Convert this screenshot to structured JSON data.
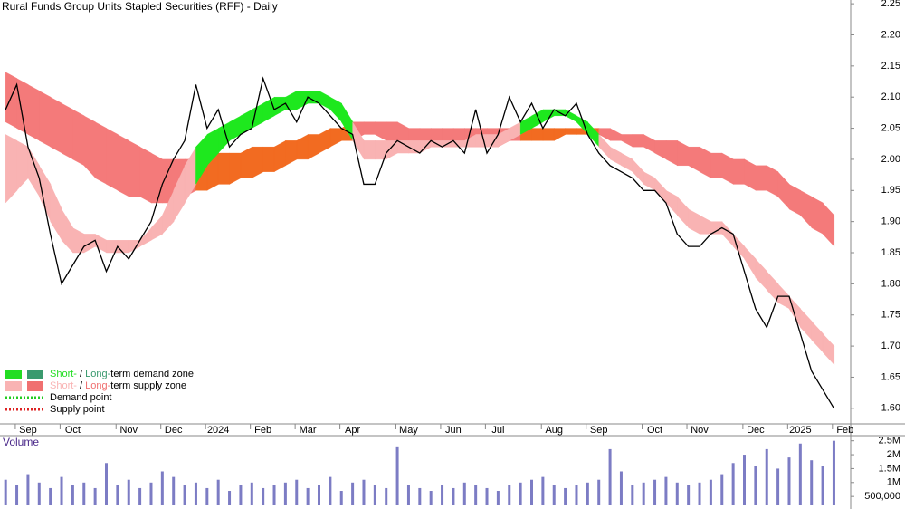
{
  "chart_data": [
    {
      "type": "line",
      "title": "Rural Funds Group Units Stapled Securities (RFF) - Daily",
      "categories": [
        null,
        null,
        "Sep",
        null,
        null,
        null,
        "Oct",
        null,
        null,
        null,
        null,
        "Nov",
        null,
        null,
        null,
        "Dec",
        null,
        null,
        null,
        "2024",
        null,
        null,
        null,
        "Feb",
        null,
        null,
        null,
        "Mar",
        null,
        null,
        null,
        "Apr",
        null,
        null,
        null,
        null,
        "May",
        null,
        null,
        null,
        "Jun",
        null,
        null,
        null,
        "Jul",
        null,
        null,
        null,
        null,
        "Aug",
        null,
        null,
        null,
        "Sep",
        null,
        null,
        null,
        null,
        "Oct",
        null,
        null,
        null,
        "Nov",
        null,
        null,
        null,
        null,
        "Dec",
        null,
        null,
        null,
        "2025",
        null,
        null,
        null,
        "Feb"
      ],
      "series": [
        {
          "color": "#000000",
          "values": [
            2.08,
            2.12,
            2.02,
            1.97,
            1.88,
            1.8,
            1.83,
            1.86,
            1.87,
            1.82,
            1.86,
            1.84,
            1.87,
            1.9,
            1.96,
            2.0,
            2.03,
            2.12,
            2.05,
            2.08,
            2.02,
            2.04,
            2.05,
            2.13,
            2.08,
            2.09,
            2.06,
            2.1,
            2.09,
            2.07,
            2.05,
            2.04,
            1.96,
            1.96,
            2.01,
            2.03,
            2.02,
            2.01,
            2.03,
            2.02,
            2.03,
            2.01,
            2.08,
            2.01,
            2.04,
            2.1,
            2.06,
            2.09,
            2.05,
            2.08,
            2.07,
            2.09,
            2.04,
            2.01,
            1.99,
            1.98,
            1.97,
            1.95,
            1.95,
            1.93,
            1.88,
            1.86,
            1.86,
            1.88,
            1.89,
            1.88,
            1.82,
            1.76,
            1.73,
            1.78,
            1.78,
            1.72,
            1.66,
            1.63,
            1.6,
            null
          ]
        }
      ],
      "zones": {
        "long": {
          "demand_color": "#f26b21",
          "supply_color": "#f47a7a",
          "upper": [
            2.14,
            2.13,
            2.12,
            2.11,
            2.1,
            2.09,
            2.08,
            2.07,
            2.06,
            2.05,
            2.04,
            2.03,
            2.02,
            2.01,
            2.0,
            2.0,
            2.0,
            2.0,
            2.01,
            2.01,
            2.01,
            2.01,
            2.02,
            2.02,
            2.02,
            2.03,
            2.03,
            2.04,
            2.04,
            2.05,
            2.05,
            2.06,
            2.06,
            2.06,
            2.06,
            2.06,
            2.05,
            2.05,
            2.05,
            2.05,
            2.05,
            2.05,
            2.05,
            2.05,
            2.05,
            2.05,
            2.05,
            2.05,
            2.05,
            2.05,
            2.05,
            2.05,
            2.05,
            2.05,
            2.05,
            2.04,
            2.04,
            2.04,
            2.03,
            2.03,
            2.03,
            2.02,
            2.02,
            2.01,
            2.01,
            2.0,
            2.0,
            1.99,
            1.99,
            1.98,
            1.96,
            1.95,
            1.94,
            1.93,
            1.91,
            null
          ],
          "lower": [
            2.06,
            2.05,
            2.04,
            2.03,
            2.02,
            2.01,
            2.0,
            1.99,
            1.97,
            1.96,
            1.95,
            1.94,
            1.94,
            1.93,
            1.93,
            1.93,
            1.94,
            1.95,
            1.95,
            1.96,
            1.96,
            1.97,
            1.97,
            1.98,
            1.98,
            1.99,
            2.0,
            2.0,
            2.01,
            2.02,
            2.03,
            2.03,
            2.04,
            2.04,
            2.03,
            2.03,
            2.03,
            2.03,
            2.02,
            2.02,
            2.02,
            2.02,
            2.02,
            2.02,
            2.02,
            2.03,
            2.03,
            2.03,
            2.03,
            2.03,
            2.04,
            2.04,
            2.04,
            2.04,
            2.03,
            2.03,
            2.02,
            2.02,
            2.01,
            2.0,
            1.99,
            1.99,
            1.98,
            1.97,
            1.97,
            1.96,
            1.96,
            1.95,
            1.95,
            1.94,
            1.92,
            1.91,
            1.89,
            1.88,
            1.86,
            null
          ]
        },
        "short": {
          "demand_color": "#1ee81e",
          "supply_color": "#f9b3b3",
          "upper": [
            2.04,
            2.03,
            2.02,
            1.99,
            1.96,
            1.92,
            1.89,
            1.88,
            1.88,
            1.87,
            1.87,
            1.87,
            1.87,
            1.89,
            1.91,
            1.95,
            1.99,
            2.02,
            2.04,
            2.05,
            2.06,
            2.07,
            2.08,
            2.09,
            2.1,
            2.1,
            2.11,
            2.11,
            2.11,
            2.1,
            2.09,
            2.06,
            2.03,
            2.03,
            2.03,
            2.03,
            2.03,
            2.03,
            2.03,
            2.03,
            2.03,
            2.03,
            2.04,
            2.04,
            2.04,
            2.05,
            2.06,
            2.07,
            2.08,
            2.08,
            2.08,
            2.07,
            2.06,
            2.04,
            2.02,
            2.01,
            2.0,
            1.98,
            1.97,
            1.95,
            1.94,
            1.92,
            1.91,
            1.9,
            1.9,
            1.88,
            1.86,
            1.84,
            1.82,
            1.8,
            1.78,
            1.76,
            1.74,
            1.72,
            1.7,
            null
          ],
          "lower": [
            1.93,
            1.95,
            1.97,
            1.94,
            1.9,
            1.87,
            1.85,
            1.85,
            1.86,
            1.85,
            1.85,
            1.85,
            1.86,
            1.87,
            1.88,
            1.9,
            1.93,
            1.96,
            1.99,
            2.01,
            2.03,
            2.04,
            2.05,
            2.06,
            2.07,
            2.08,
            2.08,
            2.09,
            2.09,
            2.08,
            2.06,
            2.03,
            2.0,
            2.0,
            2.0,
            2.01,
            2.01,
            2.01,
            2.02,
            2.02,
            2.02,
            2.02,
            2.02,
            2.02,
            2.02,
            2.03,
            2.04,
            2.05,
            2.06,
            2.07,
            2.07,
            2.06,
            2.04,
            2.02,
            2.0,
            1.99,
            1.98,
            1.96,
            1.95,
            1.93,
            1.91,
            1.89,
            1.88,
            1.88,
            1.88,
            1.86,
            1.84,
            1.81,
            1.79,
            1.77,
            1.76,
            1.73,
            1.71,
            1.69,
            1.67,
            null
          ]
        }
      },
      "ylim": [
        1.575,
        2.256
      ],
      "yticks": [
        {
          "value": 1.6,
          "label": "1.60"
        },
        1.65,
        {
          "value": 1.7,
          "label": "1.70"
        },
        1.75,
        {
          "value": 1.8,
          "label": "1.80"
        },
        1.85,
        {
          "value": 1.9,
          "label": "1.90"
        },
        1.95,
        {
          "value": 2.0,
          "label": "2.00"
        },
        2.05,
        {
          "value": 2.1,
          "label": "2.10"
        },
        2.15,
        {
          "value": 2.2,
          "label": "2.20"
        },
        2.25
      ],
      "legend": [
        {
          "colors": [
            "#22dd22",
            "#3a9a6e"
          ],
          "short": "Short-",
          "sep": " / ",
          "long": "Long-",
          "rest": "term demand zone"
        },
        {
          "colors": [
            "#f9b3b3",
            "#f07070"
          ],
          "short": "Short-",
          "sep": " / ",
          "long": "Long-",
          "rest": "term supply zone"
        },
        {
          "color": "#22cc22",
          "label": "Demand point"
        },
        {
          "color": "#dd2222",
          "label": "Supply point"
        }
      ]
    },
    {
      "type": "bar",
      "title": "Volume",
      "color": "#7c7cc4",
      "values": [
        1100000,
        900000,
        1300000,
        1000000,
        800000,
        1200000,
        900000,
        1000000,
        800000,
        1700000,
        900000,
        1100000,
        800000,
        1000000,
        1400000,
        1200000,
        900000,
        1000000,
        800000,
        1100000,
        700000,
        900000,
        1000000,
        800000,
        900000,
        1000000,
        1100000,
        800000,
        900000,
        1200000,
        700000,
        1000000,
        1100000,
        900000,
        800000,
        2300000,
        900000,
        800000,
        700000,
        900000,
        800000,
        1000000,
        900000,
        800000,
        700000,
        900000,
        1000000,
        1100000,
        1200000,
        900000,
        800000,
        900000,
        1000000,
        1100000,
        2200000,
        1400000,
        900000,
        1000000,
        1100000,
        1200000,
        1000000,
        900000,
        1000000,
        1100000,
        1300000,
        1700000,
        2000000,
        1600000,
        2200000,
        1500000,
        1900000,
        2400000,
        1800000,
        1600000,
        2500000,
        null
      ],
      "ylim": [
        180000,
        2620000
      ],
      "yticks": [
        {
          "value": 500000,
          "label": "500,000"
        },
        {
          "value": 1000000,
          "label": "1M"
        },
        {
          "value": 1500000,
          "label": "1.5M"
        },
        {
          "value": 2000000,
          "label": "2M"
        },
        {
          "value": 2500000,
          "label": "2.5M"
        }
      ]
    }
  ]
}
